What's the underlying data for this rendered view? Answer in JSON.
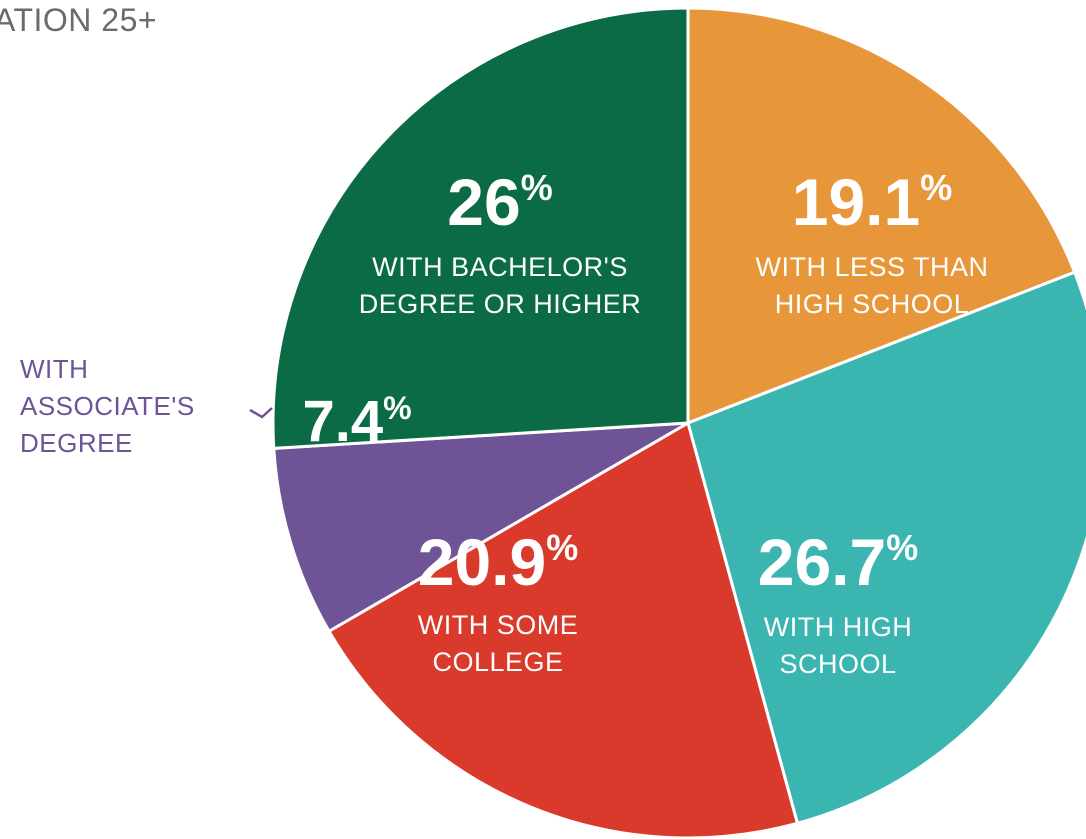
{
  "chart_data": {
    "type": "pie",
    "title": "ATION 25+",
    "slices": [
      {
        "key": "less_than_high_school",
        "value": 19.1,
        "value_label": "19.1",
        "label_lines": [
          "WITH LESS THAN",
          "HIGH SCHOOL"
        ],
        "color": "#E8963A"
      },
      {
        "key": "high_school",
        "value": 26.7,
        "value_label": "26.7",
        "label_lines": [
          "WITH HIGH",
          "SCHOOL"
        ],
        "color": "#3AB5B0"
      },
      {
        "key": "some_college",
        "value": 20.9,
        "value_label": "20.9",
        "label_lines": [
          "WITH SOME",
          "COLLEGE"
        ],
        "color": "#D93A2B"
      },
      {
        "key": "associates_degree",
        "value": 7.4,
        "value_label": "7.4",
        "label_lines": [
          "WITH",
          "ASSOCIATE'S",
          "DEGREE"
        ],
        "color": "#6E5397"
      },
      {
        "key": "bachelors_or_higher",
        "value": 26,
        "value_label": "26",
        "label_lines": [
          "WITH BACHELOR'S",
          "DEGREE OR HIGHER"
        ],
        "color": "#0A6B45"
      }
    ],
    "percent_symbol": "%"
  }
}
